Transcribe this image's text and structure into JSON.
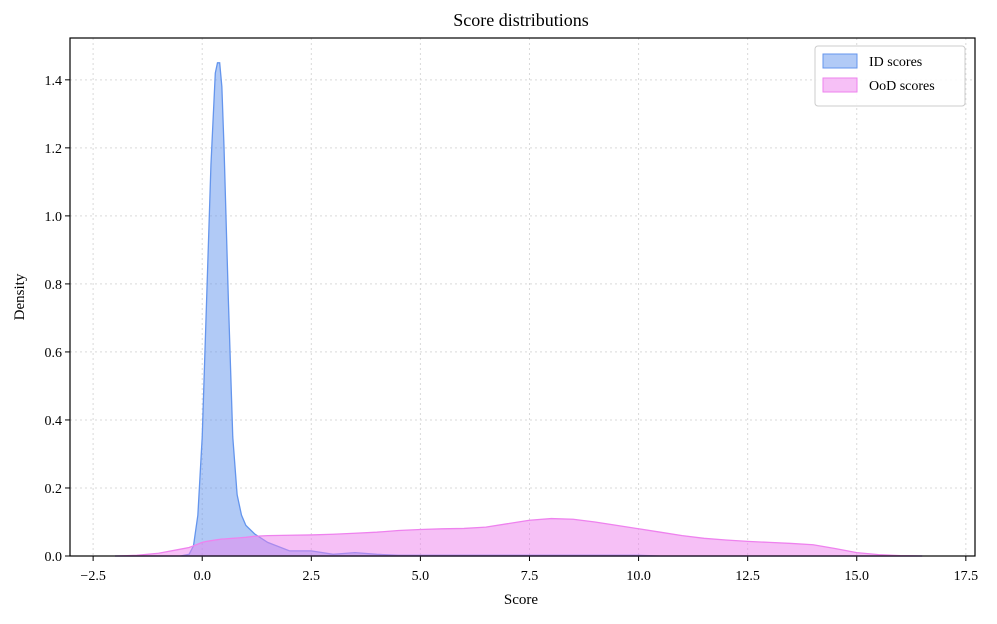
{
  "chart_data": {
    "type": "area",
    "title": "Score distributions",
    "x_label": "Score",
    "y_label": "Density",
    "x": [
      -2,
      -1.5,
      -1,
      -0.5,
      -0.3,
      -0.2,
      -0.1,
      0,
      0.1,
      0.2,
      0.3,
      0.35,
      0.4,
      0.45,
      0.5,
      0.6,
      0.7,
      0.8,
      0.9,
      1.0,
      1.2,
      1.5,
      2,
      2.5,
      3,
      3.5,
      4,
      4.5,
      5,
      5.5,
      6,
      6.5,
      7,
      7.5,
      8,
      8.5,
      9,
      9.5,
      10,
      10.5,
      11,
      11.5,
      12,
      12.5,
      13,
      13.5,
      14,
      14.5,
      15,
      15.5,
      16,
      16.5
    ],
    "series": [
      {
        "name": "ID scores",
        "color": "#6495ed",
        "values": [
          0,
          0,
          0,
          0,
          0.005,
          0.03,
          0.12,
          0.35,
          0.75,
          1.15,
          1.42,
          1.45,
          1.45,
          1.38,
          1.2,
          0.75,
          0.35,
          0.18,
          0.12,
          0.09,
          0.065,
          0.04,
          0.015,
          0.015,
          0.005,
          0.01,
          0.005,
          0.002,
          0.002,
          0.002,
          0.002,
          0.002,
          0.002,
          0.002,
          0.002,
          0.002,
          0.002,
          0.002,
          0.002,
          0,
          0,
          0,
          0,
          0,
          0,
          0,
          0,
          0,
          0,
          0,
          0,
          0
        ]
      },
      {
        "name": "OoD scores",
        "color": "#ee82ee",
        "values": [
          0,
          0.002,
          0.008,
          0.02,
          0.025,
          0.03,
          0.035,
          0.04,
          0.043,
          0.045,
          0.047,
          0.048,
          0.049,
          0.05,
          0.05,
          0.051,
          0.052,
          0.053,
          0.054,
          0.055,
          0.058,
          0.06,
          0.061,
          0.062,
          0.064,
          0.067,
          0.07,
          0.075,
          0.078,
          0.08,
          0.081,
          0.085,
          0.095,
          0.105,
          0.11,
          0.108,
          0.1,
          0.09,
          0.08,
          0.07,
          0.06,
          0.052,
          0.047,
          0.043,
          0.04,
          0.037,
          0.033,
          0.022,
          0.01,
          0.004,
          0.001,
          0
        ]
      }
    ],
    "xlim": [
      -3.03,
      17.71
    ],
    "ylim": [
      0,
      1.523
    ],
    "xticks": [
      {
        "value": -2.5,
        "label": "−2.5"
      },
      {
        "value": 0,
        "label": "0.0"
      },
      2.5,
      {
        "value": 5,
        "label": "5.0"
      },
      7.5,
      {
        "value": 10,
        "label": "10.0"
      },
      12.5,
      {
        "value": 15,
        "label": "15.0"
      },
      17.5
    ],
    "yticks": [
      {
        "value": 0,
        "label": "0.0"
      },
      0.2,
      0.4,
      0.6,
      0.8,
      {
        "value": 1,
        "label": "1.0"
      },
      1.2,
      1.4
    ],
    "grid": true,
    "legend": "upper right"
  }
}
